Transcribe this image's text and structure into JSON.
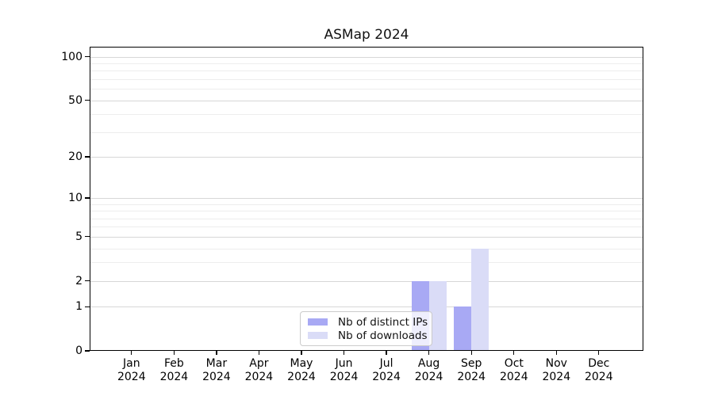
{
  "title": "ASMap 2024",
  "chart_data": {
    "type": "bar",
    "title": "ASMap 2024",
    "categories": [
      {
        "month": "Jan",
        "year": "2024"
      },
      {
        "month": "Feb",
        "year": "2024"
      },
      {
        "month": "Mar",
        "year": "2024"
      },
      {
        "month": "Apr",
        "year": "2024"
      },
      {
        "month": "May",
        "year": "2024"
      },
      {
        "month": "Jun",
        "year": "2024"
      },
      {
        "month": "Jul",
        "year": "2024"
      },
      {
        "month": "Aug",
        "year": "2024"
      },
      {
        "month": "Sep",
        "year": "2024"
      },
      {
        "month": "Oct",
        "year": "2024"
      },
      {
        "month": "Nov",
        "year": "2024"
      },
      {
        "month": "Dec",
        "year": "2024"
      }
    ],
    "series": [
      {
        "name": "Nb of distinct IPs",
        "color": "#a8a9f4",
        "values": [
          0,
          0,
          0,
          0,
          0,
          0,
          0,
          2,
          1,
          0,
          0,
          0
        ]
      },
      {
        "name": "Nb of downloads",
        "color": "#dadcf7",
        "values": [
          0,
          0,
          0,
          0,
          0,
          0,
          0,
          2,
          4,
          0,
          0,
          0
        ]
      }
    ],
    "xlabel": "",
    "ylabel": "",
    "yscale": "log1p",
    "ylim": [
      0,
      117
    ],
    "ytick_values": [
      0,
      1,
      2,
      5,
      10,
      20,
      50,
      100
    ],
    "minor_ytick_values": [
      3,
      4,
      6,
      7,
      8,
      9,
      30,
      40,
      60,
      70,
      80,
      90
    ],
    "grid": "both",
    "legend_position": "lower center"
  },
  "colors": {
    "background": "#ffffff",
    "spine": "#000000",
    "major_grid": "#d7d7d7",
    "minor_grid": "#ededed",
    "legend_border": "#cbcbcb"
  }
}
